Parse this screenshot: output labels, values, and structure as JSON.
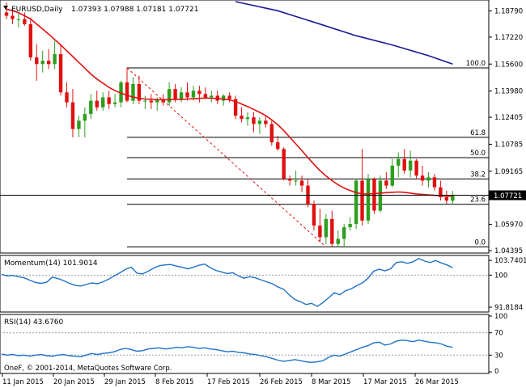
{
  "header": {
    "symbol": "EURUSD,Daily",
    "ohlc": "1.07393 1.07988 1.07181 1.07721"
  },
  "copyright": "OneF, © 2001-2014, MetaQuotes Software Corp.",
  "colors": {
    "bull": "#2e9e1f",
    "bear": "#e01010",
    "ma_fast": "#e01010",
    "ma_slow": "#1a1a99",
    "indicator": "#1d72c9",
    "price_tag": "#000000",
    "fib": "#000000",
    "trendline": "#e01010"
  },
  "chart_data": [
    {
      "type": "candlestick",
      "panel": "main",
      "y_ticks": [
        "1.18790",
        "1.17220",
        "1.15600",
        "1.13980",
        "1.12405",
        "1.10785",
        "1.09165",
        "1.07721",
        "1.05970",
        "1.04395"
      ],
      "ylim": [
        1.0435,
        1.1935
      ],
      "current_price": "1.07721",
      "current_price_value": 1.07721,
      "x_ticks": [
        "11 Jan 2015",
        "20 Jan 2015",
        "29 Jan 2015",
        "8 Feb 2015",
        "17 Feb 2015",
        "26 Feb 2015",
        "8 Mar 2015",
        "17 Mar 2015",
        "26 Mar 2015"
      ],
      "candles": [
        {
          "o": 1.187,
          "h": 1.193,
          "l": 1.183,
          "c": 1.185
        },
        {
          "o": 1.185,
          "h": 1.189,
          "l": 1.18,
          "c": 1.183
        },
        {
          "o": 1.183,
          "h": 1.187,
          "l": 1.178,
          "c": 1.183
        },
        {
          "o": 1.183,
          "h": 1.187,
          "l": 1.179,
          "c": 1.18
        },
        {
          "o": 1.18,
          "h": 1.184,
          "l": 1.158,
          "c": 1.16
        },
        {
          "o": 1.16,
          "h": 1.168,
          "l": 1.146,
          "c": 1.156
        },
        {
          "o": 1.156,
          "h": 1.164,
          "l": 1.151,
          "c": 1.158
        },
        {
          "o": 1.158,
          "h": 1.165,
          "l": 1.153,
          "c": 1.156
        },
        {
          "o": 1.156,
          "h": 1.17,
          "l": 1.153,
          "c": 1.162
        },
        {
          "o": 1.162,
          "h": 1.168,
          "l": 1.137,
          "c": 1.139
        },
        {
          "o": 1.139,
          "h": 1.145,
          "l": 1.13,
          "c": 1.133
        },
        {
          "o": 1.133,
          "h": 1.141,
          "l": 1.112,
          "c": 1.117
        },
        {
          "o": 1.117,
          "h": 1.125,
          "l": 1.112,
          "c": 1.122
        },
        {
          "o": 1.122,
          "h": 1.13,
          "l": 1.112,
          "c": 1.126
        },
        {
          "o": 1.126,
          "h": 1.138,
          "l": 1.123,
          "c": 1.134
        },
        {
          "o": 1.134,
          "h": 1.14,
          "l": 1.128,
          "c": 1.13
        },
        {
          "o": 1.13,
          "h": 1.139,
          "l": 1.128,
          "c": 1.136
        },
        {
          "o": 1.136,
          "h": 1.14,
          "l": 1.129,
          "c": 1.132
        },
        {
          "o": 1.132,
          "h": 1.138,
          "l": 1.13,
          "c": 1.133
        },
        {
          "o": 1.133,
          "h": 1.146,
          "l": 1.13,
          "c": 1.145
        },
        {
          "o": 1.145,
          "h": 1.154,
          "l": 1.133,
          "c": 1.134
        },
        {
          "o": 1.134,
          "h": 1.148,
          "l": 1.132,
          "c": 1.144
        },
        {
          "o": 1.144,
          "h": 1.149,
          "l": 1.132,
          "c": 1.134
        },
        {
          "o": 1.134,
          "h": 1.137,
          "l": 1.129,
          "c": 1.134
        },
        {
          "o": 1.134,
          "h": 1.138,
          "l": 1.129,
          "c": 1.133
        },
        {
          "o": 1.133,
          "h": 1.136,
          "l": 1.128,
          "c": 1.135
        },
        {
          "o": 1.135,
          "h": 1.138,
          "l": 1.131,
          "c": 1.133
        },
        {
          "o": 1.133,
          "h": 1.145,
          "l": 1.131,
          "c": 1.141
        },
        {
          "o": 1.141,
          "h": 1.144,
          "l": 1.133,
          "c": 1.135
        },
        {
          "o": 1.135,
          "h": 1.142,
          "l": 1.133,
          "c": 1.139
        },
        {
          "o": 1.139,
          "h": 1.145,
          "l": 1.134,
          "c": 1.136
        },
        {
          "o": 1.136,
          "h": 1.143,
          "l": 1.134,
          "c": 1.14
        },
        {
          "o": 1.14,
          "h": 1.143,
          "l": 1.133,
          "c": 1.138
        },
        {
          "o": 1.138,
          "h": 1.142,
          "l": 1.135,
          "c": 1.136
        },
        {
          "o": 1.136,
          "h": 1.14,
          "l": 1.133,
          "c": 1.137
        },
        {
          "o": 1.137,
          "h": 1.14,
          "l": 1.132,
          "c": 1.134
        },
        {
          "o": 1.134,
          "h": 1.138,
          "l": 1.131,
          "c": 1.137
        },
        {
          "o": 1.137,
          "h": 1.139,
          "l": 1.133,
          "c": 1.135
        },
        {
          "o": 1.135,
          "h": 1.137,
          "l": 1.123,
          "c": 1.125
        },
        {
          "o": 1.125,
          "h": 1.13,
          "l": 1.121,
          "c": 1.123
        },
        {
          "o": 1.123,
          "h": 1.127,
          "l": 1.119,
          "c": 1.124
        },
        {
          "o": 1.124,
          "h": 1.127,
          "l": 1.115,
          "c": 1.12
        },
        {
          "o": 1.12,
          "h": 1.124,
          "l": 1.114,
          "c": 1.122
        },
        {
          "o": 1.122,
          "h": 1.125,
          "l": 1.118,
          "c": 1.12
        },
        {
          "o": 1.12,
          "h": 1.122,
          "l": 1.107,
          "c": 1.109
        },
        {
          "o": 1.109,
          "h": 1.113,
          "l": 1.104,
          "c": 1.105
        },
        {
          "o": 1.105,
          "h": 1.106,
          "l": 1.086,
          "c": 1.087
        },
        {
          "o": 1.087,
          "h": 1.089,
          "l": 1.083,
          "c": 1.086
        },
        {
          "o": 1.086,
          "h": 1.092,
          "l": 1.083,
          "c": 1.086
        },
        {
          "o": 1.086,
          "h": 1.089,
          "l": 1.079,
          "c": 1.083
        },
        {
          "o": 1.083,
          "h": 1.087,
          "l": 1.07,
          "c": 1.072
        },
        {
          "o": 1.072,
          "h": 1.074,
          "l": 1.056,
          "c": 1.059
        },
        {
          "o": 1.059,
          "h": 1.069,
          "l": 1.049,
          "c": 1.052
        },
        {
          "o": 1.052,
          "h": 1.066,
          "l": 1.048,
          "c": 1.063
        },
        {
          "o": 1.063,
          "h": 1.068,
          "l": 1.046,
          "c": 1.048
        },
        {
          "o": 1.048,
          "h": 1.056,
          "l": 1.046,
          "c": 1.051
        },
        {
          "o": 1.051,
          "h": 1.06,
          "l": 1.046,
          "c": 1.058
        },
        {
          "o": 1.058,
          "h": 1.064,
          "l": 1.056,
          "c": 1.06
        },
        {
          "o": 1.06,
          "h": 1.087,
          "l": 1.057,
          "c": 1.086
        },
        {
          "o": 1.086,
          "h": 1.105,
          "l": 1.059,
          "c": 1.062
        },
        {
          "o": 1.062,
          "h": 1.09,
          "l": 1.06,
          "c": 1.087
        },
        {
          "o": 1.087,
          "h": 1.088,
          "l": 1.066,
          "c": 1.068
        },
        {
          "o": 1.068,
          "h": 1.089,
          "l": 1.067,
          "c": 1.086
        },
        {
          "o": 1.086,
          "h": 1.091,
          "l": 1.081,
          "c": 1.083
        },
        {
          "o": 1.083,
          "h": 1.099,
          "l": 1.082,
          "c": 1.095
        },
        {
          "o": 1.095,
          "h": 1.103,
          "l": 1.088,
          "c": 1.099
        },
        {
          "o": 1.099,
          "h": 1.105,
          "l": 1.09,
          "c": 1.092
        },
        {
          "o": 1.092,
          "h": 1.104,
          "l": 1.088,
          "c": 1.098
        },
        {
          "o": 1.098,
          "h": 1.099,
          "l": 1.087,
          "c": 1.089
        },
        {
          "o": 1.089,
          "h": 1.095,
          "l": 1.083,
          "c": 1.086
        },
        {
          "o": 1.086,
          "h": 1.091,
          "l": 1.082,
          "c": 1.088
        },
        {
          "o": 1.088,
          "h": 1.09,
          "l": 1.08,
          "c": 1.082
        },
        {
          "o": 1.082,
          "h": 1.086,
          "l": 1.074,
          "c": 1.076
        },
        {
          "o": 1.076,
          "h": 1.08,
          "l": 1.072,
          "c": 1.074
        },
        {
          "o": 1.0739,
          "h": 1.0799,
          "l": 1.0718,
          "c": 1.0772
        }
      ],
      "ma_fast": [
        1.189,
        1.188,
        1.1868,
        1.185,
        1.183,
        1.18,
        1.177,
        1.174,
        1.1708,
        1.1675,
        1.164,
        1.1605,
        1.157,
        1.1535,
        1.15,
        1.147,
        1.1445,
        1.142,
        1.14,
        1.1385,
        1.1372,
        1.1362,
        1.1355,
        1.135,
        1.1348,
        1.1346,
        1.1346,
        1.1346,
        1.1347,
        1.1348,
        1.135,
        1.1352,
        1.1354,
        1.1356,
        1.1355,
        1.1353,
        1.135,
        1.1345,
        1.1335,
        1.132,
        1.1305,
        1.1288,
        1.127,
        1.125,
        1.1225,
        1.1195,
        1.116,
        1.112,
        1.108,
        1.104,
        1.0998,
        1.0958,
        1.092,
        1.0888,
        1.086,
        1.0835,
        1.0815,
        1.08,
        1.0788,
        1.078,
        1.078,
        1.0782,
        1.0785,
        1.0788,
        1.079,
        1.0792,
        1.079,
        1.0785,
        1.078,
        1.0777,
        1.0775,
        1.0772,
        1.077,
        1.0766,
        1.0768
      ],
      "ma_slow": [
        {
          "i": 38,
          "v": 1.1935
        },
        {
          "i": 45,
          "v": 1.188
        },
        {
          "i": 52,
          "v": 1.18
        },
        {
          "i": 58,
          "v": 1.173
        },
        {
          "i": 64,
          "v": 1.1675
        },
        {
          "i": 70,
          "v": 1.161
        },
        {
          "i": 74,
          "v": 1.156
        }
      ],
      "fibonacci": {
        "start_index": 20,
        "levels": [
          {
            "label": "100.0",
            "value": 1.1537
          },
          {
            "label": "61.8",
            "value": 1.112
          },
          {
            "label": "50.0",
            "value": 1.0998
          },
          {
            "label": "38.2",
            "value": 1.087
          },
          {
            "label": "23.6",
            "value": 1.0718
          },
          {
            "label": "0.0",
            "value": 1.0462
          }
        ]
      },
      "trendline": {
        "from": {
          "i": 20,
          "v": 1.1537
        },
        "to": {
          "i": 53,
          "v": 1.0462
        }
      }
    },
    {
      "type": "line",
      "panel": "momentum",
      "name": "Momentum(14) 101.9014",
      "y_ticks": [
        "103.7401",
        "100",
        "91.8184"
      ],
      "ylim": [
        91.0,
        104.6
      ],
      "values": [
        100.2,
        99.8,
        99.9,
        99.6,
        99.3,
        98.7,
        98.1,
        97.9,
        98.2,
        99.5,
        99.1,
        98.6,
        97.9,
        97.4,
        97.2,
        97.6,
        98.0,
        97.8,
        98.3,
        99.0,
        99.8,
        100.6,
        101.5,
        102.0,
        100.5,
        100.3,
        101.0,
        101.8,
        102.4,
        102.6,
        102.7,
        102.3,
        102.0,
        101.6,
        102.0,
        102.5,
        102.8,
        101.9,
        101.2,
        100.8,
        100.4,
        100.6,
        99.8,
        99.2,
        99.6,
        99.3,
        98.8,
        98.3,
        97.8,
        97.0,
        96.4,
        95.0,
        93.8,
        93.2,
        92.5,
        92.8,
        92.0,
        93.0,
        94.2,
        95.5,
        95.0,
        96.0,
        96.5,
        97.3,
        98.0,
        99.2,
        101.0,
        101.5,
        101.1,
        101.6,
        103.2,
        103.4,
        103.0,
        103.4,
        104.2,
        103.6,
        103.2,
        103.7,
        103.1,
        102.6,
        101.9
      ]
    },
    {
      "type": "line",
      "panel": "rsi",
      "name": "RSI(14) 43.6760",
      "y_ticks": [
        "100",
        "70",
        "30",
        "0"
      ],
      "ylim": [
        0,
        100
      ],
      "values": [
        32,
        30,
        31,
        29,
        30,
        28,
        30,
        31,
        29,
        28,
        30,
        31,
        29,
        28,
        27,
        30,
        33,
        31,
        33,
        34,
        36,
        40,
        42,
        40,
        37,
        38,
        41,
        42,
        43,
        41,
        42,
        44,
        43,
        45,
        44,
        42,
        43,
        41,
        40,
        38,
        36,
        37,
        35,
        34,
        32,
        31,
        29,
        27,
        24,
        21,
        19,
        20,
        22,
        20,
        18,
        17,
        18,
        20,
        26,
        30,
        28,
        32,
        36,
        40,
        44,
        47,
        52,
        53,
        48,
        50,
        55,
        57,
        56,
        54,
        57,
        55,
        53,
        52,
        50,
        46,
        44
      ]
    }
  ]
}
